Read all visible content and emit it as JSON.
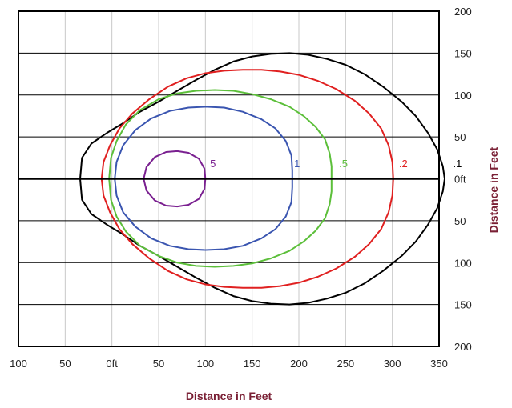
{
  "chart_data": {
    "type": "line",
    "xlabel": "Distance in Feet",
    "ylabel": "Distance in Feet",
    "xlim": [
      -100,
      350
    ],
    "ylim": [
      -200,
      200
    ],
    "x_ticks": [
      {
        "value": -100,
        "label": "100"
      },
      {
        "value": -50,
        "label": "50"
      },
      {
        "value": 0,
        "label": "0ft"
      },
      {
        "value": 50,
        "label": "50"
      },
      {
        "value": 100,
        "label": "100"
      },
      {
        "value": 150,
        "label": "150"
      },
      {
        "value": 200,
        "label": "200"
      },
      {
        "value": 250,
        "label": "250"
      },
      {
        "value": 300,
        "label": "300"
      },
      {
        "value": 350,
        "label": "350"
      }
    ],
    "y_ticks": [
      {
        "value": 200,
        "label": "200"
      },
      {
        "value": 150,
        "label": "150"
      },
      {
        "value": 100,
        "label": "100"
      },
      {
        "value": 50,
        "label": "50"
      },
      {
        "value": 0,
        "label": "0ft"
      },
      {
        "value": -50,
        "label": "50"
      },
      {
        "value": -100,
        "label": "100"
      },
      {
        "value": -150,
        "label": "150"
      },
      {
        "value": -200,
        "label": "200"
      }
    ],
    "grid": true,
    "series": [
      {
        "name": ".1",
        "color": "#000000",
        "label_at": [
          365,
          14
        ],
        "points": [
          [
            -34,
            0
          ],
          [
            -32,
            25
          ],
          [
            -22,
            42
          ],
          [
            -5,
            55
          ],
          [
            10,
            65
          ],
          [
            30,
            80
          ],
          [
            50,
            92
          ],
          [
            70,
            105
          ],
          [
            90,
            118
          ],
          [
            110,
            130
          ],
          [
            130,
            140
          ],
          [
            150,
            146
          ],
          [
            170,
            149
          ],
          [
            190,
            150
          ],
          [
            210,
            148
          ],
          [
            230,
            143
          ],
          [
            250,
            136
          ],
          [
            270,
            125
          ],
          [
            290,
            110
          ],
          [
            310,
            92
          ],
          [
            325,
            75
          ],
          [
            338,
            55
          ],
          [
            348,
            35
          ],
          [
            354,
            15
          ],
          [
            356,
            0
          ],
          [
            354,
            -15
          ],
          [
            348,
            -35
          ],
          [
            338,
            -55
          ],
          [
            325,
            -75
          ],
          [
            310,
            -92
          ],
          [
            290,
            -110
          ],
          [
            270,
            -125
          ],
          [
            250,
            -136
          ],
          [
            230,
            -143
          ],
          [
            210,
            -148
          ],
          [
            190,
            -150
          ],
          [
            170,
            -149
          ],
          [
            150,
            -146
          ],
          [
            130,
            -140
          ],
          [
            110,
            -130
          ],
          [
            90,
            -118
          ],
          [
            70,
            -105
          ],
          [
            50,
            -92
          ],
          [
            30,
            -80
          ],
          [
            10,
            -65
          ],
          [
            -5,
            -55
          ],
          [
            -22,
            -42
          ],
          [
            -32,
            -25
          ]
        ]
      },
      {
        "name": ".2",
        "color": "#e02020",
        "label_at": [
          307,
          14
        ],
        "points": [
          [
            -11,
            0
          ],
          [
            -9,
            20
          ],
          [
            -2,
            40
          ],
          [
            8,
            60
          ],
          [
            22,
            78
          ],
          [
            40,
            95
          ],
          [
            60,
            110
          ],
          [
            80,
            120
          ],
          [
            100,
            126
          ],
          [
            120,
            129
          ],
          [
            140,
            130
          ],
          [
            160,
            130
          ],
          [
            180,
            128
          ],
          [
            200,
            124
          ],
          [
            220,
            117
          ],
          [
            240,
            107
          ],
          [
            260,
            93
          ],
          [
            275,
            78
          ],
          [
            288,
            60
          ],
          [
            296,
            40
          ],
          [
            300,
            20
          ],
          [
            301,
            0
          ],
          [
            300,
            -20
          ],
          [
            296,
            -40
          ],
          [
            288,
            -60
          ],
          [
            275,
            -78
          ],
          [
            260,
            -93
          ],
          [
            240,
            -107
          ],
          [
            220,
            -117
          ],
          [
            200,
            -124
          ],
          [
            180,
            -128
          ],
          [
            160,
            -130
          ],
          [
            140,
            -130
          ],
          [
            120,
            -129
          ],
          [
            100,
            -126
          ],
          [
            80,
            -120
          ],
          [
            60,
            -110
          ],
          [
            40,
            -95
          ],
          [
            22,
            -78
          ],
          [
            8,
            -60
          ],
          [
            -2,
            -40
          ],
          [
            -9,
            -20
          ]
        ]
      },
      {
        "name": ".5",
        "color": "#5cbf3a",
        "label_at": [
          243,
          14
        ],
        "points": [
          [
            -3,
            0
          ],
          [
            -1,
            25
          ],
          [
            5,
            45
          ],
          [
            15,
            65
          ],
          [
            30,
            82
          ],
          [
            50,
            95
          ],
          [
            70,
            102
          ],
          [
            90,
            105
          ],
          [
            110,
            106
          ],
          [
            130,
            105
          ],
          [
            150,
            101
          ],
          [
            170,
            95
          ],
          [
            190,
            86
          ],
          [
            205,
            75
          ],
          [
            218,
            62
          ],
          [
            228,
            47
          ],
          [
            233,
            30
          ],
          [
            235,
            15
          ],
          [
            235,
            0
          ],
          [
            235,
            -15
          ],
          [
            233,
            -30
          ],
          [
            228,
            -47
          ],
          [
            218,
            -62
          ],
          [
            205,
            -75
          ],
          [
            190,
            -86
          ],
          [
            170,
            -95
          ],
          [
            150,
            -101
          ],
          [
            130,
            -104
          ],
          [
            110,
            -105
          ],
          [
            90,
            -104
          ],
          [
            70,
            -100
          ],
          [
            50,
            -92
          ],
          [
            30,
            -80
          ],
          [
            15,
            -63
          ],
          [
            5,
            -45
          ],
          [
            -1,
            -25
          ]
        ]
      },
      {
        "name": "1",
        "color": "#3a55b0",
        "label_at": [
          195,
          14
        ],
        "points": [
          [
            3,
            0
          ],
          [
            5,
            20
          ],
          [
            12,
            40
          ],
          [
            25,
            58
          ],
          [
            42,
            72
          ],
          [
            62,
            81
          ],
          [
            82,
            85
          ],
          [
            100,
            86
          ],
          [
            120,
            85
          ],
          [
            140,
            80
          ],
          [
            160,
            71
          ],
          [
            175,
            60
          ],
          [
            186,
            45
          ],
          [
            192,
            28
          ],
          [
            193,
            10
          ],
          [
            193,
            0
          ],
          [
            193,
            -10
          ],
          [
            192,
            -28
          ],
          [
            186,
            -45
          ],
          [
            175,
            -60
          ],
          [
            160,
            -71
          ],
          [
            140,
            -80
          ],
          [
            120,
            -84
          ],
          [
            100,
            -85
          ],
          [
            82,
            -84
          ],
          [
            62,
            -80
          ],
          [
            42,
            -71
          ],
          [
            25,
            -57
          ],
          [
            12,
            -40
          ],
          [
            5,
            -20
          ]
        ]
      },
      {
        "name": "5",
        "color": "#7a2090",
        "label_at": [
          105,
          14
        ],
        "points": [
          [
            34,
            0
          ],
          [
            37,
            14
          ],
          [
            46,
            26
          ],
          [
            58,
            32
          ],
          [
            70,
            33
          ],
          [
            82,
            31
          ],
          [
            93,
            24
          ],
          [
            99,
            12
          ],
          [
            100,
            0
          ],
          [
            99,
            -12
          ],
          [
            93,
            -24
          ],
          [
            82,
            -31
          ],
          [
            70,
            -33
          ],
          [
            58,
            -32
          ],
          [
            46,
            -26
          ],
          [
            37,
            -14
          ]
        ]
      }
    ]
  }
}
